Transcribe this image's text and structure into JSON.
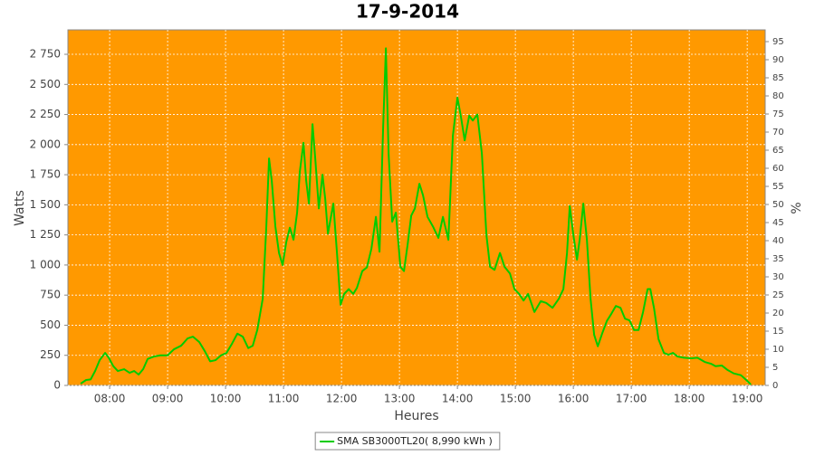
{
  "chart_data": {
    "type": "line",
    "title": "17-9-2014",
    "x_label": "Heures",
    "y_label": "Watts",
    "y2_label": "%",
    "xlim": [
      7.28,
      19.31
    ],
    "ylim": [
      0,
      2953
    ],
    "y2lim": [
      0,
      98.25
    ],
    "xticks": [
      {
        "value": 8,
        "label": "08:00"
      },
      {
        "value": 9,
        "label": "09:00"
      },
      {
        "value": 10,
        "label": "10:00"
      },
      {
        "value": 11,
        "label": "11:00"
      },
      {
        "value": 12,
        "label": "12:00"
      },
      {
        "value": 13,
        "label": "13:00"
      },
      {
        "value": 14,
        "label": "14:00"
      },
      {
        "value": 15,
        "label": "15:00"
      },
      {
        "value": 16,
        "label": "16:00"
      },
      {
        "value": 17,
        "label": "17:00"
      },
      {
        "value": 18,
        "label": "18:00"
      },
      {
        "value": 19,
        "label": "19:00"
      }
    ],
    "yticks": [
      0,
      250,
      500,
      750,
      {
        "value": 1000,
        "label": "1 000"
      },
      {
        "value": 1250,
        "label": "1 250"
      },
      {
        "value": 1500,
        "label": "1 500"
      },
      {
        "value": 1750,
        "label": "1 750"
      },
      {
        "value": 2000,
        "label": "2 000"
      },
      {
        "value": 2250,
        "label": "2 250"
      },
      {
        "value": 2500,
        "label": "2 500"
      },
      {
        "value": 2750,
        "label": "2 750"
      }
    ],
    "y2ticks": [
      0,
      5,
      10,
      15,
      20,
      25,
      30,
      35,
      40,
      45,
      50,
      55,
      60,
      65,
      70,
      75,
      80,
      85,
      90,
      95
    ],
    "grid": true,
    "background": "#ff9900",
    "legend": "bottom",
    "x": [
      7.5,
      7.594,
      7.672,
      7.75,
      7.828,
      7.922,
      7.984,
      8.063,
      8.141,
      8.25,
      8.344,
      8.422,
      8.5,
      8.578,
      8.656,
      8.766,
      8.875,
      9.0,
      9.109,
      9.234,
      9.344,
      9.438,
      9.547,
      9.641,
      9.734,
      9.828,
      9.922,
      10.016,
      10.109,
      10.203,
      10.297,
      10.391,
      10.469,
      10.547,
      10.641,
      10.703,
      10.75,
      10.797,
      10.859,
      10.922,
      10.984,
      11.047,
      11.109,
      11.172,
      11.234,
      11.281,
      11.344,
      11.391,
      11.438,
      11.5,
      11.547,
      11.609,
      11.672,
      11.719,
      11.766,
      11.859,
      11.922,
      11.984,
      12.047,
      12.125,
      12.203,
      12.266,
      12.359,
      12.438,
      12.516,
      12.594,
      12.656,
      12.719,
      12.766,
      12.813,
      12.875,
      12.938,
      13.016,
      13.078,
      13.141,
      13.203,
      13.266,
      13.344,
      13.406,
      13.484,
      13.578,
      13.672,
      13.75,
      13.844,
      13.922,
      14.0,
      14.063,
      14.125,
      14.203,
      14.266,
      14.344,
      14.422,
      14.5,
      14.563,
      14.641,
      14.734,
      14.813,
      14.906,
      14.984,
      15.063,
      15.141,
      15.219,
      15.328,
      15.438,
      15.531,
      15.641,
      15.75,
      15.828,
      15.891,
      15.938,
      16.0,
      16.063,
      16.109,
      16.172,
      16.234,
      16.297,
      16.359,
      16.422,
      16.5,
      16.578,
      16.656,
      16.734,
      16.813,
      16.891,
      16.969,
      17.047,
      17.125,
      17.203,
      17.281,
      17.328,
      17.391,
      17.469,
      17.563,
      17.641,
      17.719,
      17.797,
      17.906,
      18.031,
      18.141,
      18.266,
      18.375,
      18.453,
      18.563,
      18.656,
      18.766,
      18.891,
      18.984,
      19.063
    ],
    "series": [
      {
        "name": "SMA SB3000TL20( 8,990 kWh )",
        "color": "#00cc00",
        "values": [
          15,
          45,
          50,
          120,
          210,
          270,
          230,
          160,
          120,
          135,
          105,
          120,
          90,
          135,
          220,
          240,
          250,
          250,
          300,
          330,
          390,
          405,
          360,
          285,
          200,
          210,
          250,
          270,
          345,
          430,
          405,
          310,
          330,
          460,
          720,
          1320,
          1885,
          1700,
          1320,
          1100,
          1000,
          1190,
          1310,
          1210,
          1435,
          1775,
          2015,
          1700,
          1510,
          2170,
          1885,
          1470,
          1750,
          1550,
          1260,
          1510,
          1100,
          670,
          760,
          800,
          760,
          810,
          950,
          980,
          1135,
          1400,
          1110,
          2150,
          2800,
          1920,
          1360,
          1435,
          985,
          950,
          1170,
          1410,
          1470,
          1675,
          1580,
          1400,
          1320,
          1225,
          1400,
          1210,
          2075,
          2390,
          2225,
          2035,
          2240,
          2200,
          2250,
          1925,
          1250,
          985,
          960,
          1100,
          985,
          930,
          800,
          760,
          705,
          760,
          610,
          700,
          685,
          645,
          720,
          800,
          1100,
          1490,
          1250,
          1045,
          1210,
          1510,
          1210,
          720,
          420,
          325,
          435,
          535,
          595,
          660,
          645,
          555,
          540,
          460,
          460,
          610,
          800,
          800,
          645,
          385,
          270,
          255,
          270,
          240,
          230,
          225,
          230,
          195,
          180,
          160,
          165,
          130,
          100,
          85,
          45,
          8
        ]
      }
    ]
  }
}
